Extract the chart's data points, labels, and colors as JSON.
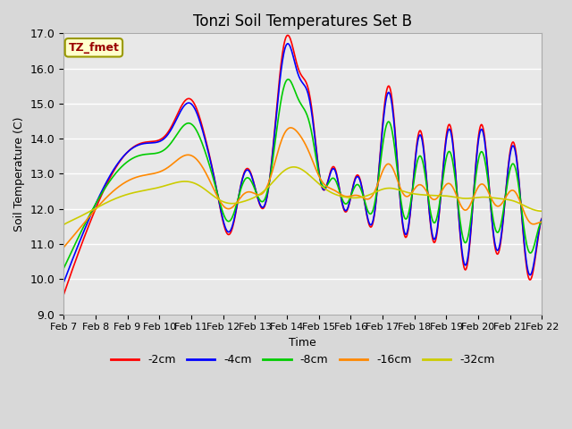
{
  "title": "Tonzi Soil Temperatures Set B",
  "xlabel": "Time",
  "ylabel": "Soil Temperature (C)",
  "ylim": [
    9.0,
    17.0
  ],
  "yticks": [
    9.0,
    10.0,
    11.0,
    12.0,
    13.0,
    14.0,
    15.0,
    16.0,
    17.0
  ],
  "xtick_labels": [
    "Feb 7",
    "Feb 8",
    "Feb 9",
    "Feb 10",
    "Feb 11",
    "Feb 12",
    "Feb 13",
    "Feb 14",
    "Feb 15",
    "Feb 16",
    "Feb 17",
    "Feb 18",
    "Feb 19",
    "Feb 20",
    "Feb 21",
    "Feb 22"
  ],
  "annotation": "TZ_fmet",
  "annotation_color": "#990000",
  "annotation_bg": "#ffffcc",
  "annotation_edge": "#999900",
  "colors": {
    "-2cm": "#ff0000",
    "-4cm": "#0000ff",
    "-8cm": "#00cc00",
    "-16cm": "#ff8800",
    "-32cm": "#cccc00"
  },
  "legend_labels": [
    "-2cm",
    "-4cm",
    "-8cm",
    "-16cm",
    "-32cm"
  ],
  "fig_bg": "#d8d8d8",
  "plot_bg": "#e8e8e8",
  "grid_color": "#ffffff",
  "linewidth": 1.2,
  "n_days": 15,
  "points_per_day": 48
}
